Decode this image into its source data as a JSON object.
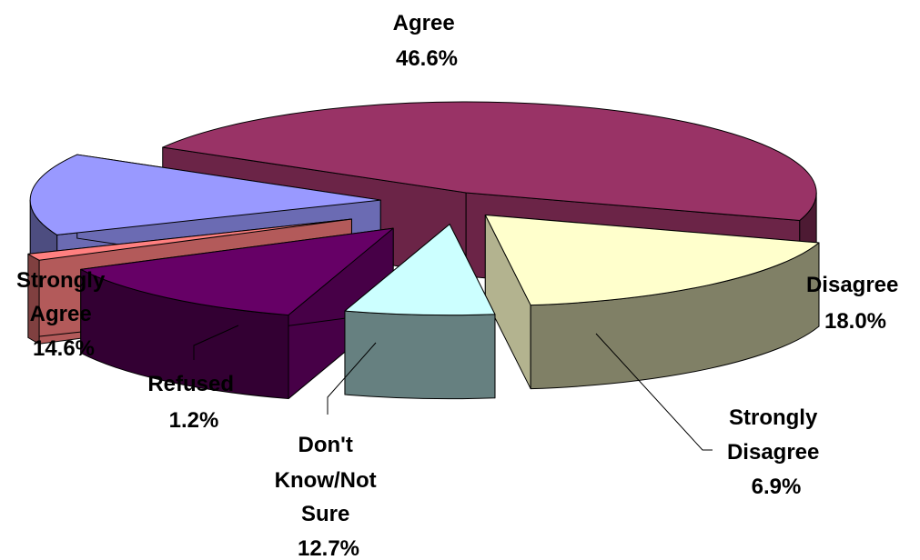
{
  "chart_data": {
    "type": "pie",
    "subtype": "3d-exploded",
    "slices": [
      {
        "label": "Agree",
        "value": 46.6,
        "display_value": "46.6%",
        "color": "#993366"
      },
      {
        "label": "Disagree",
        "value": 18.0,
        "display_value": "18.0%",
        "color": "#FFFFCC"
      },
      {
        "label": "Strongly Disagree",
        "value": 6.9,
        "display_value": "6.9%",
        "color": "#CCFFFF"
      },
      {
        "label": "Don't Know/Not Sure",
        "value": 12.7,
        "display_value": "12.7%",
        "color": "#660066"
      },
      {
        "label": "Refused",
        "value": 1.2,
        "display_value": "1.2%",
        "color": "#FF8080"
      },
      {
        "label": "Strongly Agree",
        "value": 14.6,
        "display_value": "14.6%",
        "color": "#9999FF"
      }
    ],
    "labels": {
      "agree": [
        "Agree",
        "46.6%"
      ],
      "disagree": [
        "Disagree",
        "18.0%"
      ],
      "strongly_disagree": [
        "Strongly",
        "Disagree",
        "6.9%"
      ],
      "dont_know": [
        "Don't",
        "Know/Not",
        "Sure",
        "12.7%"
      ],
      "refused": [
        "Refused",
        "1.2%"
      ],
      "strongly_agree": [
        "Strongly",
        "Agree",
        "14.6%"
      ]
    },
    "title": "",
    "legend": "none"
  }
}
